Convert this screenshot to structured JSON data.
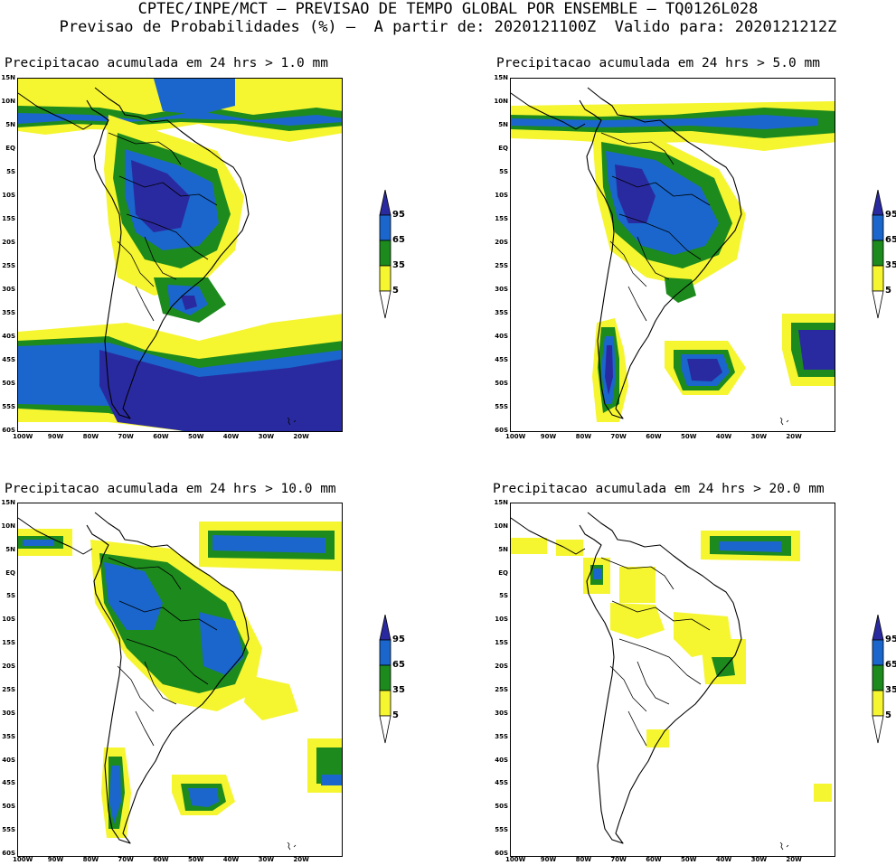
{
  "header": {
    "line1": "CPTEC/INPE/MCT — PREVISAO DE TEMPO GLOBAL POR ENSEMBLE — TQ0126L028",
    "line2": "Previsao de Probabilidades (%) —  A partir de: 2020121100Z  Valido para: 2020121212Z"
  },
  "axes": {
    "lat_labels": [
      "15N",
      "10N",
      "5N",
      "EQ",
      "5S",
      "10S",
      "15S",
      "20S",
      "25S",
      "30S",
      "35S",
      "40S",
      "45S",
      "50S",
      "55S",
      "60S"
    ],
    "lon_labels": [
      "100W",
      "90W",
      "80W",
      "70W",
      "60W",
      "50W",
      "40W",
      "30W",
      "20W"
    ]
  },
  "colorbar": {
    "levels": [
      "95",
      "65",
      "35",
      "5"
    ],
    "colors": {
      "c95": "#2a2aa0",
      "c65": "#1a66cc",
      "c35": "#1d8a1d",
      "c5": "#f5f530"
    }
  },
  "panels": [
    {
      "title": "Precipitacao acumulada em 24 hrs > 1.0 mm"
    },
    {
      "title": "Precipitacao acumulada em 24 hrs > 5.0 mm"
    },
    {
      "title": "Precipitacao acumulada em 24 hrs > 10.0 mm"
    },
    {
      "title": "Precipitacao acumulada em 24 hrs > 20.0 mm"
    }
  ]
}
